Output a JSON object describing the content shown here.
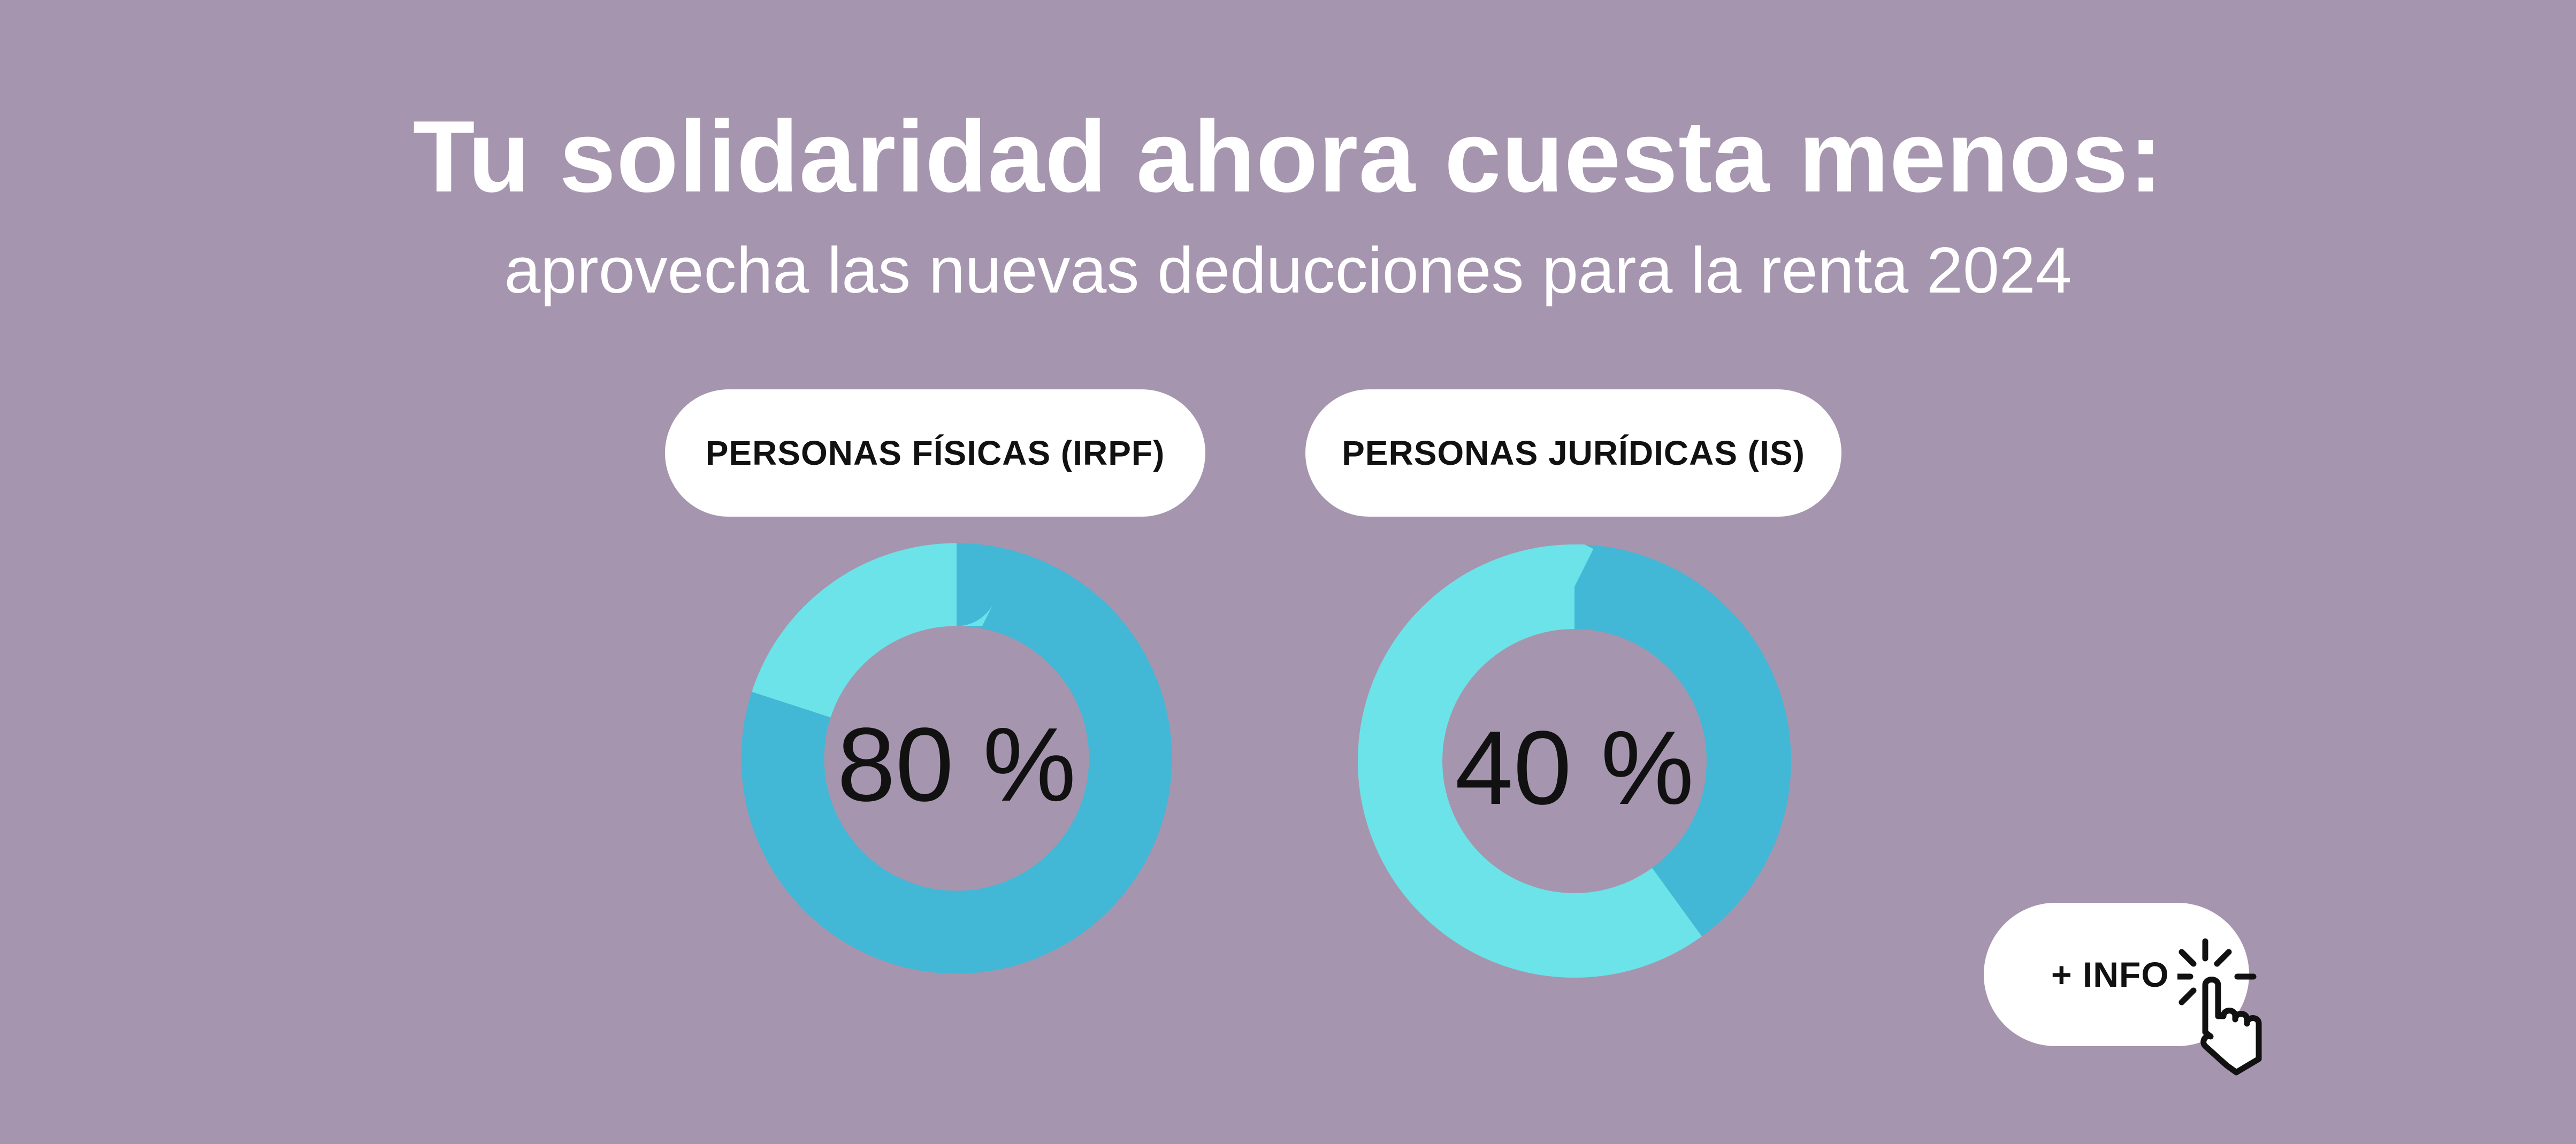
{
  "title": "Tu solidaridad ahora cuesta menos:",
  "subtitle": "aprovecha las nuevas deducciones para la renta 2024",
  "colors": {
    "background": "#a695ae",
    "primary_segment": "#43b7d6",
    "remainder_segment": "#6ce3e8",
    "pill": "#ffffff",
    "text_dark": "#111111"
  },
  "chart_data": [
    {
      "type": "pie",
      "title": "PERSONAS FÍSICAS (IRPF)",
      "center_label": "80 %",
      "slices": [
        {
          "value": 80,
          "color": "#43b7d6"
        },
        {
          "value": 20,
          "color": "#6ce3e8"
        }
      ]
    },
    {
      "type": "pie",
      "title": "PERSONAS JURÍDICAS (IS)",
      "center_label": "40 %",
      "slices": [
        {
          "value": 40,
          "color": "#43b7d6"
        },
        {
          "value": 60,
          "color": "#6ce3e8"
        }
      ]
    }
  ],
  "info_button": {
    "label": "+ INFO",
    "icon": "pointer-hand-click-icon"
  }
}
